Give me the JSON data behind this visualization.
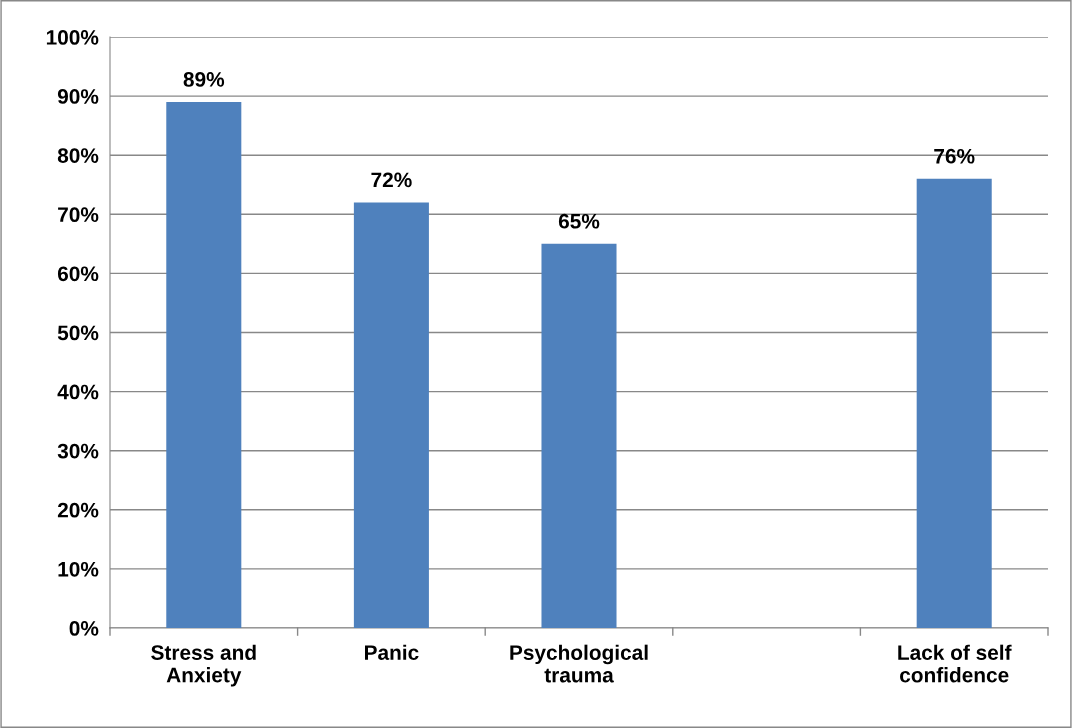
{
  "chart_data": {
    "type": "bar",
    "categories": [
      "Stress and Anxiety",
      "Panic",
      "Psychological trauma",
      null,
      "Lack of self confidence"
    ],
    "values": [
      89,
      72,
      65,
      null,
      76
    ],
    "color": "#4f81bd",
    "ylim": [
      0,
      100
    ],
    "yticks": [
      {
        "value": 0,
        "label": "0%"
      },
      {
        "value": 10,
        "label": "10%"
      },
      {
        "value": 20,
        "label": "20%"
      },
      {
        "value": 30,
        "label": "30%"
      },
      {
        "value": 40,
        "label": "40%"
      },
      {
        "value": 50,
        "label": "50%"
      },
      {
        "value": 60,
        "label": "60%"
      },
      {
        "value": 70,
        "label": "70%"
      },
      {
        "value": 80,
        "label": "80%"
      },
      {
        "value": 90,
        "label": "90%"
      },
      {
        "value": 100,
        "label": "100%"
      }
    ],
    "value_labels": [
      "89%",
      "72%",
      "65%",
      null,
      "76%"
    ],
    "grid": "y",
    "legend": false
  }
}
